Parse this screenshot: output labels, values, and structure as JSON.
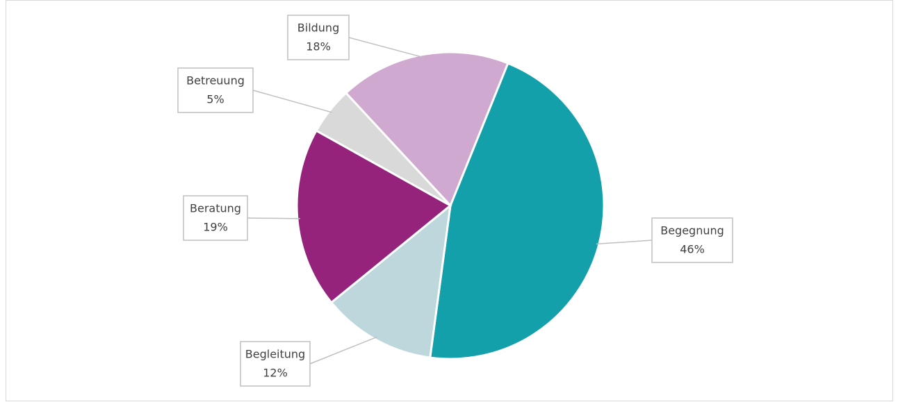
{
  "chart_data": {
    "type": "pie",
    "categories": [
      "Begegnung",
      "Begleitung",
      "Beratung",
      "Betreuung",
      "Bildung"
    ],
    "values": [
      46,
      12,
      19,
      5,
      18
    ],
    "value_labels": [
      "46%",
      "12%",
      "19%",
      "5%",
      "18%"
    ],
    "colors": [
      "#14a0ab",
      "#bdd7dc",
      "#95237c",
      "#d9d9d9",
      "#cfa9cf"
    ]
  }
}
